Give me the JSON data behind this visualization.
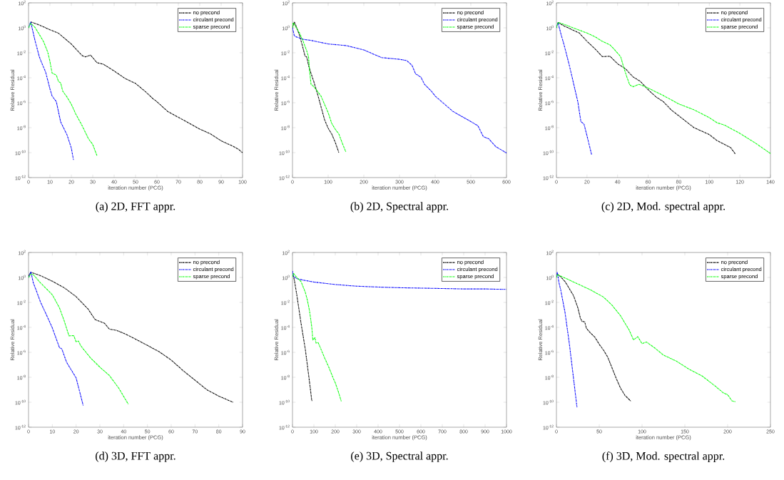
{
  "chart_data": [
    {
      "type": "line",
      "title": "(a) 2D, FFT appr.",
      "xlabel": "iteration number (PCG)",
      "ylabel": "Relative Residual",
      "log": "y",
      "legend": "top right",
      "line_style": "dashed",
      "marker": "none",
      "xlim": [
        0,
        100
      ],
      "xticks": [
        0,
        10,
        20,
        30,
        40,
        50,
        60,
        70,
        80,
        90,
        100
      ],
      "ylim": [
        1e-12,
        100
      ],
      "yticks": [
        {
          "value": 1e-12,
          "label": "10$^{-12}$"
        },
        {
          "value": 1e-10,
          "label": "10$^{-10}$"
        },
        {
          "value": 1e-08,
          "label": "10$^{-8}$"
        },
        {
          "value": 1e-06,
          "label": "10$^{-6}$"
        },
        {
          "value": 0.0001,
          "label": "10$^{-4}$"
        },
        {
          "value": 0.01,
          "label": "10$^{-2}$"
        },
        {
          "value": 1,
          "label": "10$^{0}$"
        },
        {
          "value": 100,
          "label": "10$^{2}$"
        }
      ],
      "series": [
        {
          "name": "no precond",
          "color": "#000000",
          "x": [
            1,
            5,
            10,
            14,
            20,
            25,
            26.5,
            29,
            32,
            35,
            40,
            45,
            50,
            55,
            58,
            60,
            65,
            70,
            75,
            80,
            85,
            90,
            95,
            98,
            100
          ],
          "values": [
            3,
            1.7,
            0.7,
            0.37,
            0.05,
            0.006,
            0.0047,
            0.0065,
            0.0016,
            0.0012,
            0.00035,
            9e-05,
            3.5e-05,
            6.8e-06,
            2.2e-06,
            1.2e-06,
            2e-07,
            6.8e-08,
            2.3e-08,
            7.7e-09,
            3.2e-09,
            8.8e-10,
            3.6e-10,
            1.9e-10,
            1e-10
          ]
        },
        {
          "name": "circulant precond",
          "color": "#0000ff",
          "x": [
            0,
            1,
            3,
            5,
            6,
            8,
            10,
            11,
            13,
            15,
            18,
            20,
            21
          ],
          "values": [
            1,
            3,
            0.1,
            0.005,
            0.0018,
            0.00028,
            1.3e-05,
            3.5e-06,
            1.2e-06,
            2.9e-08,
            2.6e-09,
            2.3e-10,
            2.6e-11
          ]
        },
        {
          "name": "sparse precond",
          "color": "#00ff00",
          "x": [
            0,
            1,
            3,
            5,
            7,
            9,
            10,
            11,
            13,
            14,
            15,
            16,
            18,
            20,
            22,
            25,
            28,
            30,
            32
          ],
          "values": [
            1,
            2.3,
            1.1,
            0.3,
            0.08,
            0.011,
            0.002,
            0.00024,
            0.00016,
            5e-05,
            3.9e-05,
            8.3e-06,
            2.8e-06,
            7.5e-07,
            1.3e-07,
            1.5e-08,
            1.3e-09,
            4.5e-10,
            5.5e-11
          ]
        }
      ]
    },
    {
      "type": "line",
      "title": "(b) 2D, Spectral appr.",
      "xlabel": "iteration number (PCG)",
      "ylabel": "Relative Residual",
      "log": "y",
      "legend": "top right",
      "line_style": "dashed",
      "marker": "none",
      "xlim": [
        0,
        600
      ],
      "xticks": [
        0,
        100,
        200,
        300,
        400,
        500,
        600
      ],
      "ylim": [
        1e-12,
        100
      ],
      "yticks": [
        {
          "value": 1e-12,
          "label": "10$^{-12}$"
        },
        {
          "value": 1e-10,
          "label": "10$^{-10}$"
        },
        {
          "value": 1e-08,
          "label": "10$^{-8}$"
        },
        {
          "value": 1e-06,
          "label": "10$^{-6}$"
        },
        {
          "value": 0.0001,
          "label": "10$^{-4}$"
        },
        {
          "value": 0.01,
          "label": "10$^{-2}$"
        },
        {
          "value": 1,
          "label": "10$^{0}$"
        },
        {
          "value": 100,
          "label": "10$^{2}$"
        }
      ],
      "series": [
        {
          "name": "no precond",
          "color": "#000000",
          "x": [
            0,
            5,
            10,
            20,
            30,
            35,
            40,
            45,
            50,
            60,
            70,
            80,
            90,
            100,
            110,
            120,
            130
          ],
          "values": [
            1,
            3,
            1.4,
            0.24,
            0.021,
            0.0057,
            0.0045,
            0.001,
            0.00033,
            4.7e-05,
            5.2e-06,
            4.7e-07,
            4.3e-08,
            9e-09,
            3.1e-09,
            6.6e-10,
            1e-10
          ]
        },
        {
          "name": "circulant precond",
          "color": "#0000ff",
          "x": [
            0,
            5,
            10,
            30,
            50,
            100,
            150,
            200,
            230,
            250,
            300,
            320,
            335,
            345,
            360,
            370,
            390,
            400,
            450,
            500,
            520,
            535,
            550,
            570,
            590,
            600
          ],
          "values": [
            1,
            0.24,
            0.19,
            0.12,
            0.1,
            0.051,
            0.038,
            0.017,
            0.0072,
            0.0041,
            0.003,
            0.0024,
            0.001,
            0.00021,
            0.00011,
            3e-05,
            8.1e-06,
            3.4e-06,
            2e-07,
            3.1e-08,
            1.4e-08,
            1.9e-09,
            1.3e-09,
            3e-10,
            1.4e-10,
            9.3e-11
          ]
        },
        {
          "name": "sparse precond",
          "color": "#00ff00",
          "x": [
            0,
            2,
            10,
            20,
            30,
            40,
            45,
            48,
            52,
            60,
            70,
            80,
            90,
            100,
            110,
            120,
            130,
            140,
            150
          ],
          "values": [
            1,
            2.6,
            1.1,
            0.37,
            0.08,
            0.014,
            0.0047,
            0.00033,
            3e-05,
            1.9e-05,
            8.1e-06,
            3.4e-06,
            7.3e-07,
            1.6e-07,
            2.2e-08,
            7.4e-09,
            3.1e-09,
            5.3e-10,
            1.1e-10
          ]
        }
      ]
    },
    {
      "type": "line",
      "title": "(c) 2D, Mod. spectral appr.",
      "xlabel": "iteration number (PCG)",
      "ylabel": "Relative Residual",
      "log": "y",
      "legend": "top right",
      "line_style": "dashed",
      "marker": "none",
      "xlim": [
        0,
        140
      ],
      "xticks": [
        0,
        20,
        40,
        60,
        80,
        100,
        120,
        140
      ],
      "ylim": [
        1e-12,
        100
      ],
      "yticks": [
        {
          "value": 1e-12,
          "label": "10$^{-12}$"
        },
        {
          "value": 1e-10,
          "label": "10$^{-10}$"
        },
        {
          "value": 1e-08,
          "label": "10$^{-8}$"
        },
        {
          "value": 1e-06,
          "label": "10$^{-6}$"
        },
        {
          "value": 0.0001,
          "label": "10$^{-4}$"
        },
        {
          "value": 0.01,
          "label": "10$^{-2}$"
        },
        {
          "value": 1,
          "label": "10$^{0}$"
        },
        {
          "value": 100,
          "label": "10$^{2}$"
        }
      ],
      "series": [
        {
          "name": "no precond",
          "color": "#000000",
          "x": [
            1,
            5,
            10,
            15,
            20,
            25,
            30,
            35,
            40,
            45,
            50,
            55,
            60,
            65,
            70,
            75,
            80,
            85,
            90,
            95,
            100,
            105,
            110,
            114,
            117
          ],
          "values": [
            2.7,
            1.4,
            0.73,
            0.38,
            0.083,
            0.022,
            0.0049,
            0.0053,
            0.0013,
            0.00055,
            0.00012,
            5e-05,
            1.1e-05,
            3e-06,
            1.2e-06,
            2.7e-07,
            9e-08,
            3e-08,
            1e-08,
            5.3e-09,
            2.8e-09,
            9.3e-10,
            4.5e-10,
            2.5e-10,
            7.9e-11
          ]
        },
        {
          "name": "circulant precond",
          "color": "#0000ff",
          "x": [
            0,
            1,
            3,
            5,
            8,
            10,
            12,
            14,
            16,
            18,
            20,
            23
          ],
          "values": [
            1,
            2.7,
            0.3,
            0.043,
            0.0016,
            0.00015,
            1.3e-05,
            1.2e-06,
            3e-08,
            2e-08,
            2.2e-09,
            6.9e-11
          ]
        },
        {
          "name": "sparse precond",
          "color": "#00ff00",
          "x": [
            0,
            1,
            5,
            10,
            20,
            25,
            30,
            35,
            38,
            40,
            42,
            44,
            46,
            48,
            50,
            54,
            60,
            70,
            80,
            90,
            100,
            105,
            110,
            120,
            130,
            140
          ],
          "values": [
            1,
            2.7,
            1.9,
            1.1,
            0.38,
            0.2,
            0.083,
            0.043,
            0.018,
            0.0093,
            0.0049,
            0.00069,
            0.00012,
            2.6e-05,
            1.9e-05,
            3e-05,
            1.5e-05,
            3.7e-06,
            8e-07,
            2.7e-07,
            6.4e-08,
            2.5e-08,
            1.6e-08,
            3.5e-09,
            6e-10,
            8.5e-11
          ]
        }
      ]
    },
    {
      "type": "line",
      "title": "(d) 3D, FFT appr.",
      "xlabel": "iteration number (PCG)",
      "ylabel": "Relative Residual",
      "log": "y",
      "legend": "top right",
      "line_style": "dashed",
      "marker": "none",
      "xlim": [
        0,
        90
      ],
      "xticks": [
        0,
        10,
        20,
        30,
        40,
        50,
        60,
        70,
        80,
        90
      ],
      "ylim": [
        1e-12,
        100
      ],
      "yticks": [
        {
          "value": 1e-12,
          "label": "10$^{-12}$"
        },
        {
          "value": 1e-10,
          "label": "10$^{-10}$"
        },
        {
          "value": 1e-08,
          "label": "10$^{-8}$"
        },
        {
          "value": 1e-06,
          "label": "10$^{-6}$"
        },
        {
          "value": 0.0001,
          "label": "10$^{-4}$"
        },
        {
          "value": 0.01,
          "label": "10$^{-2}$"
        },
        {
          "value": 1,
          "label": "10$^{0}$"
        },
        {
          "value": 100,
          "label": "10$^{2}$"
        }
      ],
      "series": [
        {
          "name": "no precond",
          "color": "#000000",
          "x": [
            0,
            1,
            5,
            10,
            15,
            20,
            25,
            28,
            30,
            32,
            34,
            37,
            40,
            43,
            50,
            55,
            60,
            65,
            70,
            75,
            80,
            86
          ],
          "values": [
            1.3,
            2.6,
            1.4,
            0.5,
            0.15,
            0.029,
            0.003,
            0.00042,
            0.0003,
            0.00021,
            7.2e-05,
            5.8e-05,
            3.4e-05,
            1.8e-05,
            3.6e-06,
            1.1e-06,
            2.4e-07,
            3.4e-08,
            5.9e-09,
            1e-09,
            3.1e-10,
            1e-10
          ]
        },
        {
          "name": "circulant precond",
          "color": "#0000ff",
          "x": [
            0,
            1,
            2,
            3,
            5,
            8,
            10,
            13,
            14,
            16,
            20,
            23
          ],
          "values": [
            1,
            2.9,
            0.37,
            0.12,
            0.011,
            0.00064,
            9e-05,
            2.4e-06,
            1.9e-06,
            1.6e-07,
            9e-09,
            5.4e-11
          ]
        },
        {
          "name": "sparse precond",
          "color": "#00ff00",
          "x": [
            0,
            1,
            2,
            5,
            8,
            10,
            13,
            15,
            17,
            19,
            20,
            21,
            22,
            24,
            26,
            30,
            34,
            38,
            42
          ],
          "values": [
            1,
            1.9,
            1.7,
            0.37,
            0.1,
            0.041,
            0.0037,
            0.00033,
            2.1e-05,
            2.2e-05,
            7e-06,
            8e-06,
            3.3e-06,
            1.1e-06,
            3.7e-07,
            6.5e-08,
            1.4e-08,
            1.3e-09,
            6.7e-11
          ]
        }
      ]
    },
    {
      "type": "line",
      "title": "(e) 3D, Spectral appr.",
      "xlabel": "iteration number (PCG)",
      "ylabel": "Relative Residual",
      "log": "y",
      "legend": "top right",
      "line_style": "dashed",
      "marker": "none",
      "xlim": [
        0,
        1000
      ],
      "xticks": [
        0,
        100,
        200,
        300,
        400,
        500,
        600,
        700,
        800,
        900,
        1000
      ],
      "ylim": [
        1e-12,
        100
      ],
      "yticks": [
        {
          "value": 1e-12,
          "label": "10$^{-12}$"
        },
        {
          "value": 1e-10,
          "label": "10$^{-10}$"
        },
        {
          "value": 1e-08,
          "label": "10$^{-8}$"
        },
        {
          "value": 1e-06,
          "label": "10$^{-6}$"
        },
        {
          "value": 0.0001,
          "label": "10$^{-4}$"
        },
        {
          "value": 0.01,
          "label": "10$^{-2}$"
        },
        {
          "value": 1,
          "label": "10$^{0}$"
        },
        {
          "value": 100,
          "label": "10$^{2}$"
        }
      ],
      "series": [
        {
          "name": "no precond",
          "color": "#000000",
          "x": [
            0,
            5,
            10,
            20,
            30,
            40,
            50,
            60,
            70,
            80,
            90,
            93
          ],
          "values": [
            1.5,
            1.2,
            0.46,
            0.041,
            0.003,
            0.00021,
            1.9e-05,
            1.7e-06,
            7.9e-08,
            3.7e-09,
            1.4e-10,
            1.2e-10
          ]
        },
        {
          "name": "circulant precond",
          "color": "#0000ff",
          "x": [
            0,
            5,
            20,
            50,
            100,
            200,
            300,
            400,
            500,
            600,
            700,
            800,
            900,
            1000
          ],
          "values": [
            3.3,
            1.2,
            0.8,
            0.61,
            0.43,
            0.27,
            0.2,
            0.17,
            0.15,
            0.14,
            0.13,
            0.12,
            0.12,
            0.11
          ]
        },
        {
          "name": "sparse precond",
          "color": "#00ff00",
          "x": [
            0,
            5,
            20,
            40,
            60,
            70,
            80,
            90,
            95,
            105,
            110,
            120,
            130,
            150,
            170,
            190,
            200,
            215,
            228
          ],
          "values": [
            1.1,
            2.1,
            1,
            0.46,
            0.063,
            0.014,
            0.0019,
            0.00011,
            9.8e-06,
            1.5e-05,
            5.5e-06,
            6e-06,
            2.4e-06,
            3.6e-07,
            6.3e-08,
            8.7e-09,
            3.6e-09,
            6.3e-10,
            1.2e-10
          ]
        }
      ]
    },
    {
      "type": "line",
      "title": "(f) 3D, Mod. spectral appr.",
      "xlabel": "iteration number (PCG)",
      "ylabel": "Relative Residual",
      "log": "y",
      "legend": "top right",
      "line_style": "dashed",
      "marker": "none",
      "xlim": [
        0,
        250
      ],
      "xticks": [
        0,
        50,
        100,
        150,
        200,
        250
      ],
      "ylim": [
        1e-12,
        100
      ],
      "yticks": [
        {
          "value": 1e-12,
          "label": "10$^{-12}$"
        },
        {
          "value": 1e-10,
          "label": "10$^{-10}$"
        },
        {
          "value": 1e-08,
          "label": "10$^{-8}$"
        },
        {
          "value": 1e-06,
          "label": "10$^{-6}$"
        },
        {
          "value": 0.0001,
          "label": "10$^{-4}$"
        },
        {
          "value": 0.01,
          "label": "10$^{-2}$"
        },
        {
          "value": 1,
          "label": "10$^{0}$"
        },
        {
          "value": 100,
          "label": "10$^{2}$"
        }
      ],
      "series": [
        {
          "name": "no precond",
          "color": "#000000",
          "x": [
            0,
            2,
            5,
            10,
            15,
            20,
            25,
            28,
            30,
            33,
            35,
            40,
            45,
            50,
            55,
            60,
            65,
            70,
            75,
            80,
            87
          ],
          "values": [
            1.6,
            1.7,
            1.1,
            0.47,
            0.13,
            0.034,
            0.0038,
            0.00054,
            0.0003,
            0.00028,
            8.3e-05,
            3.4e-05,
            1.6e-05,
            4.4e-06,
            1.5e-06,
            4e-07,
            5.5e-08,
            7.7e-09,
            1.3e-09,
            3.6e-10,
            1.2e-10
          ]
        },
        {
          "name": "circulant precond",
          "color": "#0000ff",
          "x": [
            0,
            1,
            3,
            5,
            10,
            15,
            20,
            24
          ],
          "values": [
            1,
            2.7,
            0.37,
            0.1,
            0.0016,
            5.4e-06,
            7.7e-09,
            4e-11
          ]
        },
        {
          "name": "sparse precond",
          "color": "#00ff00",
          "x": [
            0,
            1,
            10,
            25,
            40,
            55,
            65,
            75,
            80,
            85,
            90,
            95,
            100,
            105,
            115,
            125,
            140,
            155,
            170,
            185,
            195,
            200,
            205,
            209
          ],
          "values": [
            1,
            1.7,
            0.9,
            0.3,
            0.1,
            0.027,
            0.0059,
            0.00083,
            0.00022,
            6e-05,
            1e-05,
            1.8e-05,
            5e-06,
            6.8e-06,
            2.2e-06,
            6e-07,
            2e-07,
            4.4e-08,
            1.3e-08,
            2.1e-09,
            5.6e-10,
            4e-10,
            1.3e-10,
            1.1e-10
          ]
        }
      ]
    }
  ]
}
